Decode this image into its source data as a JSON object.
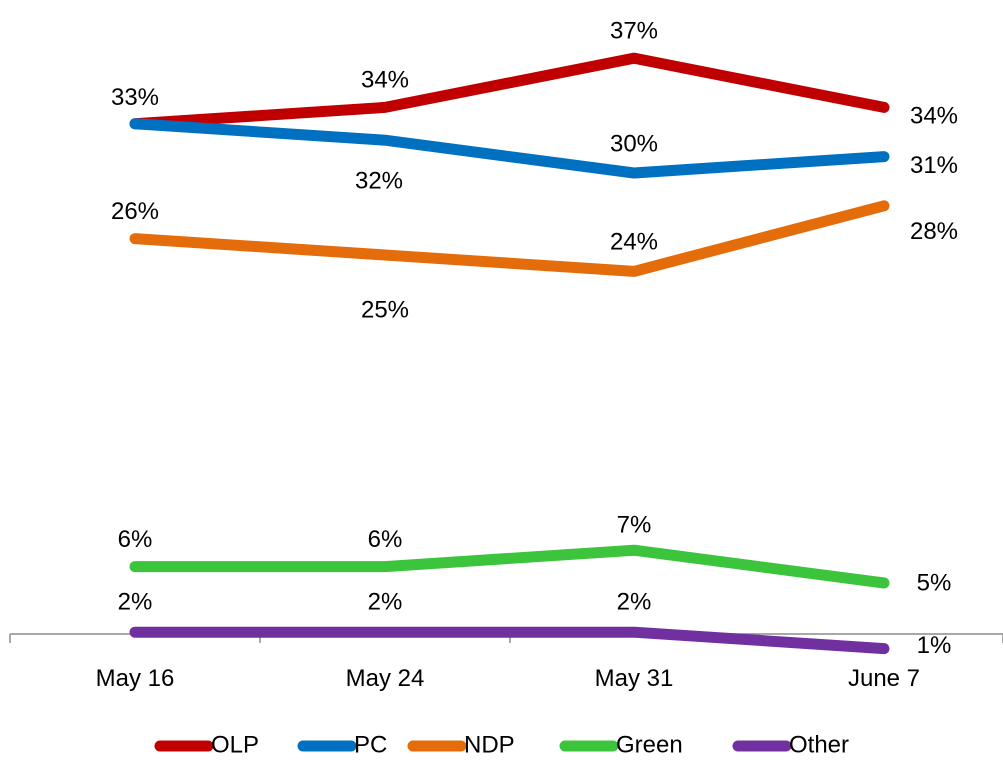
{
  "chart_data": {
    "type": "line",
    "categories": [
      "May 16",
      "May 24",
      "May 31",
      "June 7"
    ],
    "series": [
      {
        "name": "OLP",
        "color": "#C00000",
        "values": [
          33,
          34,
          37,
          34
        ],
        "labels": [
          "33%",
          "34%",
          "37%",
          "34%"
        ]
      },
      {
        "name": "PC",
        "color": "#0070C0",
        "values": [
          33,
          32,
          30,
          31
        ],
        "labels": [
          "",
          "32%",
          "30%",
          "31%"
        ]
      },
      {
        "name": "NDP",
        "color": "#E46C0A",
        "values": [
          26,
          25,
          24,
          28
        ],
        "labels": [
          "26%",
          "25%",
          "24%",
          "28%"
        ]
      },
      {
        "name": "Green",
        "color": "#3CC43C",
        "values": [
          6,
          6,
          7,
          5
        ],
        "labels": [
          "6%",
          "6%",
          "7%",
          "5%"
        ]
      },
      {
        "name": "Other",
        "color": "#7030A0",
        "values": [
          2,
          2,
          2,
          1
        ],
        "labels": [
          "2%",
          "2%",
          "2%",
          "1%"
        ]
      }
    ],
    "ylim": [
      0,
      40
    ],
    "grid": false,
    "legend": "bottom",
    "title": "",
    "xlabel": "",
    "ylabel": ""
  }
}
